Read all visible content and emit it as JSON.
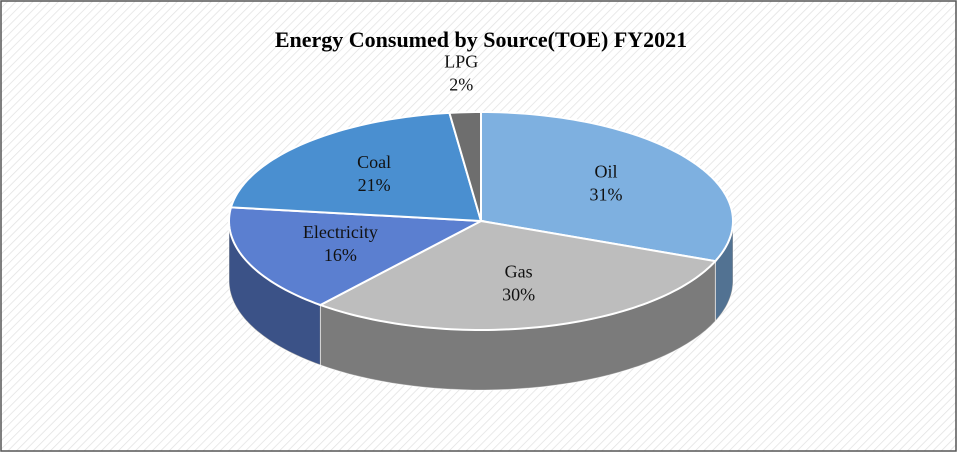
{
  "chart_data": {
    "type": "pie3d",
    "title": "Energy Consumed by Source(TOE) FY2021",
    "categories": [
      "Oil",
      "Gas",
      "Electricity",
      "Coal",
      "LPG"
    ],
    "values": [
      31,
      30,
      16,
      21,
      2
    ],
    "value_labels": [
      "31%",
      "30%",
      "16%",
      "21%",
      "2%"
    ],
    "colors": [
      "#7eb0e0",
      "#bdbdbd",
      "#5b7fd0",
      "#4a8fd0",
      "#6e6e6e"
    ]
  }
}
